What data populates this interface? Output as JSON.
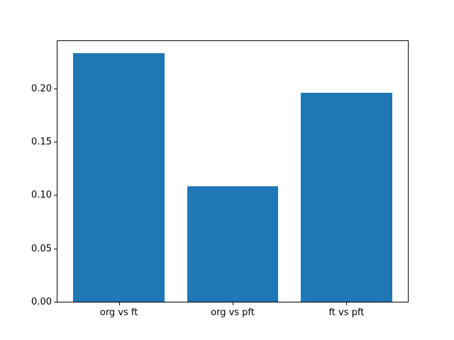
{
  "chart_data": {
    "type": "bar",
    "categories": [
      "org vs ft",
      "org vs pft",
      "ft vs pft"
    ],
    "values": [
      0.233,
      0.108,
      0.196
    ],
    "title": "",
    "xlabel": "",
    "ylabel": "",
    "ylim": [
      0,
      0.2444
    ],
    "xlim": [
      -0.54,
      2.54
    ],
    "bar_centers": [
      0,
      1,
      2
    ],
    "bar_width_fraction": 0.8,
    "ytick_labels": [
      "0.00",
      "0.05",
      "0.10",
      "0.15",
      "0.20"
    ],
    "ytick_values": [
      0.0,
      0.05,
      0.1,
      0.15,
      0.2
    ],
    "grid": false,
    "legend": null,
    "bar_color": "#1f77b4",
    "axis_color": "#000000",
    "background_color": "#ffffff"
  }
}
